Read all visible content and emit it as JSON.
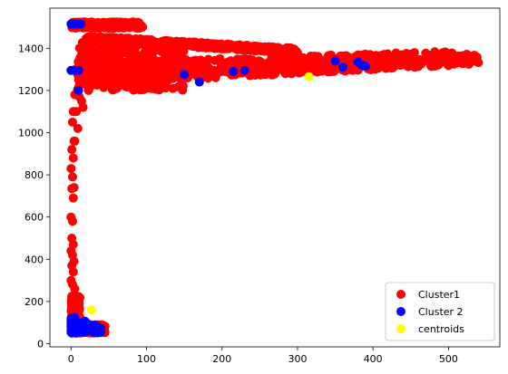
{
  "chart_data": {
    "type": "scatter",
    "title": "",
    "xlabel": "",
    "ylabel": "",
    "xlim": [
      -28,
      568
    ],
    "ylim": [
      -15,
      1590
    ],
    "xticks": [
      0,
      100,
      200,
      300,
      400,
      500
    ],
    "yticks": [
      0,
      200,
      400,
      600,
      800,
      1000,
      1200,
      1400
    ],
    "grid": false,
    "legend_position": "lower-right",
    "series": [
      {
        "name": "Cluster1",
        "color": "#ff0000",
        "bands": [
          {
            "x": [
              8,
              540
            ],
            "y": [
              1225,
              1395
            ],
            "taper": true
          },
          {
            "x": [
              8,
              150
            ],
            "y": [
              1200,
              1430
            ]
          },
          {
            "x": [
              20,
              300
            ],
            "y": [
              1360,
              1425
            ],
            "slope": true
          },
          {
            "x": [
              0,
              95
            ],
            "y": [
              1495,
              1525
            ]
          },
          {
            "x": [
              0,
              45
            ],
            "y": [
              50,
              90
            ]
          },
          {
            "x": [
              0,
              12
            ],
            "y": [
              50,
              230
            ]
          }
        ],
        "points": [
          [
            3,
            1100
          ],
          [
            2,
            1050
          ],
          [
            5,
            1180
          ],
          [
            4,
            960
          ],
          [
            1,
            920
          ],
          [
            3,
            880
          ],
          [
            0,
            830
          ],
          [
            2,
            790
          ],
          [
            4,
            740
          ],
          [
            1,
            735
          ],
          [
            3,
            690
          ],
          [
            0,
            600
          ],
          [
            2,
            580
          ],
          [
            1,
            500
          ],
          [
            3,
            470
          ],
          [
            0,
            440
          ],
          [
            2,
            420
          ],
          [
            4,
            390
          ],
          [
            1,
            370
          ],
          [
            3,
            340
          ],
          [
            0,
            300
          ],
          [
            2,
            280
          ],
          [
            5,
            260
          ],
          [
            1,
            220
          ],
          [
            4,
            210
          ],
          [
            6,
            1300
          ],
          [
            10,
            1250
          ],
          [
            14,
            1150
          ],
          [
            9,
            1020
          ],
          [
            7,
            1100
          ],
          [
            5,
            960
          ],
          [
            11,
            1170
          ],
          [
            16,
            1120
          ]
        ]
      },
      {
        "name": "Cluster 2",
        "color": "#0000ff",
        "cluster_region": {
          "x": [
            0,
            40
          ],
          "y": [
            50,
            130
          ]
        },
        "points": [
          [
            0,
            1515
          ],
          [
            3,
            1515
          ],
          [
            6,
            1515
          ],
          [
            9,
            1515
          ],
          [
            13,
            1515
          ],
          [
            0,
            1295
          ],
          [
            4,
            1295
          ],
          [
            7,
            1295
          ],
          [
            10,
            1295
          ],
          [
            10,
            1200
          ],
          [
            150,
            1275
          ],
          [
            170,
            1240
          ],
          [
            215,
            1290
          ],
          [
            230,
            1295
          ],
          [
            350,
            1340
          ],
          [
            360,
            1310
          ],
          [
            380,
            1335
          ],
          [
            385,
            1320
          ],
          [
            390,
            1315
          ]
        ]
      },
      {
        "name": "centroids",
        "color": "#ffff00",
        "points": [
          [
            27,
            160
          ],
          [
            315,
            1265
          ]
        ]
      }
    ]
  }
}
